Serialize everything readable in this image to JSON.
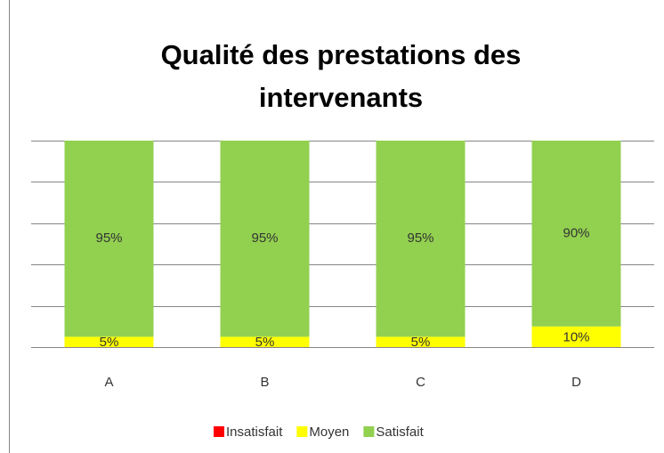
{
  "chart_data": {
    "type": "stacked_bar",
    "title": "Qualité des prestations des intervenants",
    "categories": [
      "A",
      "B",
      "C",
      "D"
    ],
    "series": [
      {
        "name": "Insatisfait",
        "color": "#ff0000",
        "values": [
          0,
          0,
          0,
          0
        ]
      },
      {
        "name": "Moyen",
        "color": "#ffff00",
        "values": [
          5,
          5,
          5,
          10
        ],
        "value_labels": [
          "5%",
          "5%",
          "5%",
          "10%"
        ]
      },
      {
        "name": "Satisfait",
        "color": "#92d050",
        "values": [
          95,
          95,
          95,
          90
        ],
        "value_labels": [
          "95%",
          "95%",
          "95%",
          "90%"
        ]
      }
    ],
    "ylim": [
      0,
      100
    ],
    "yticks": [
      0,
      20,
      40,
      60,
      80,
      100
    ],
    "grid": true,
    "legend": "bottom"
  }
}
